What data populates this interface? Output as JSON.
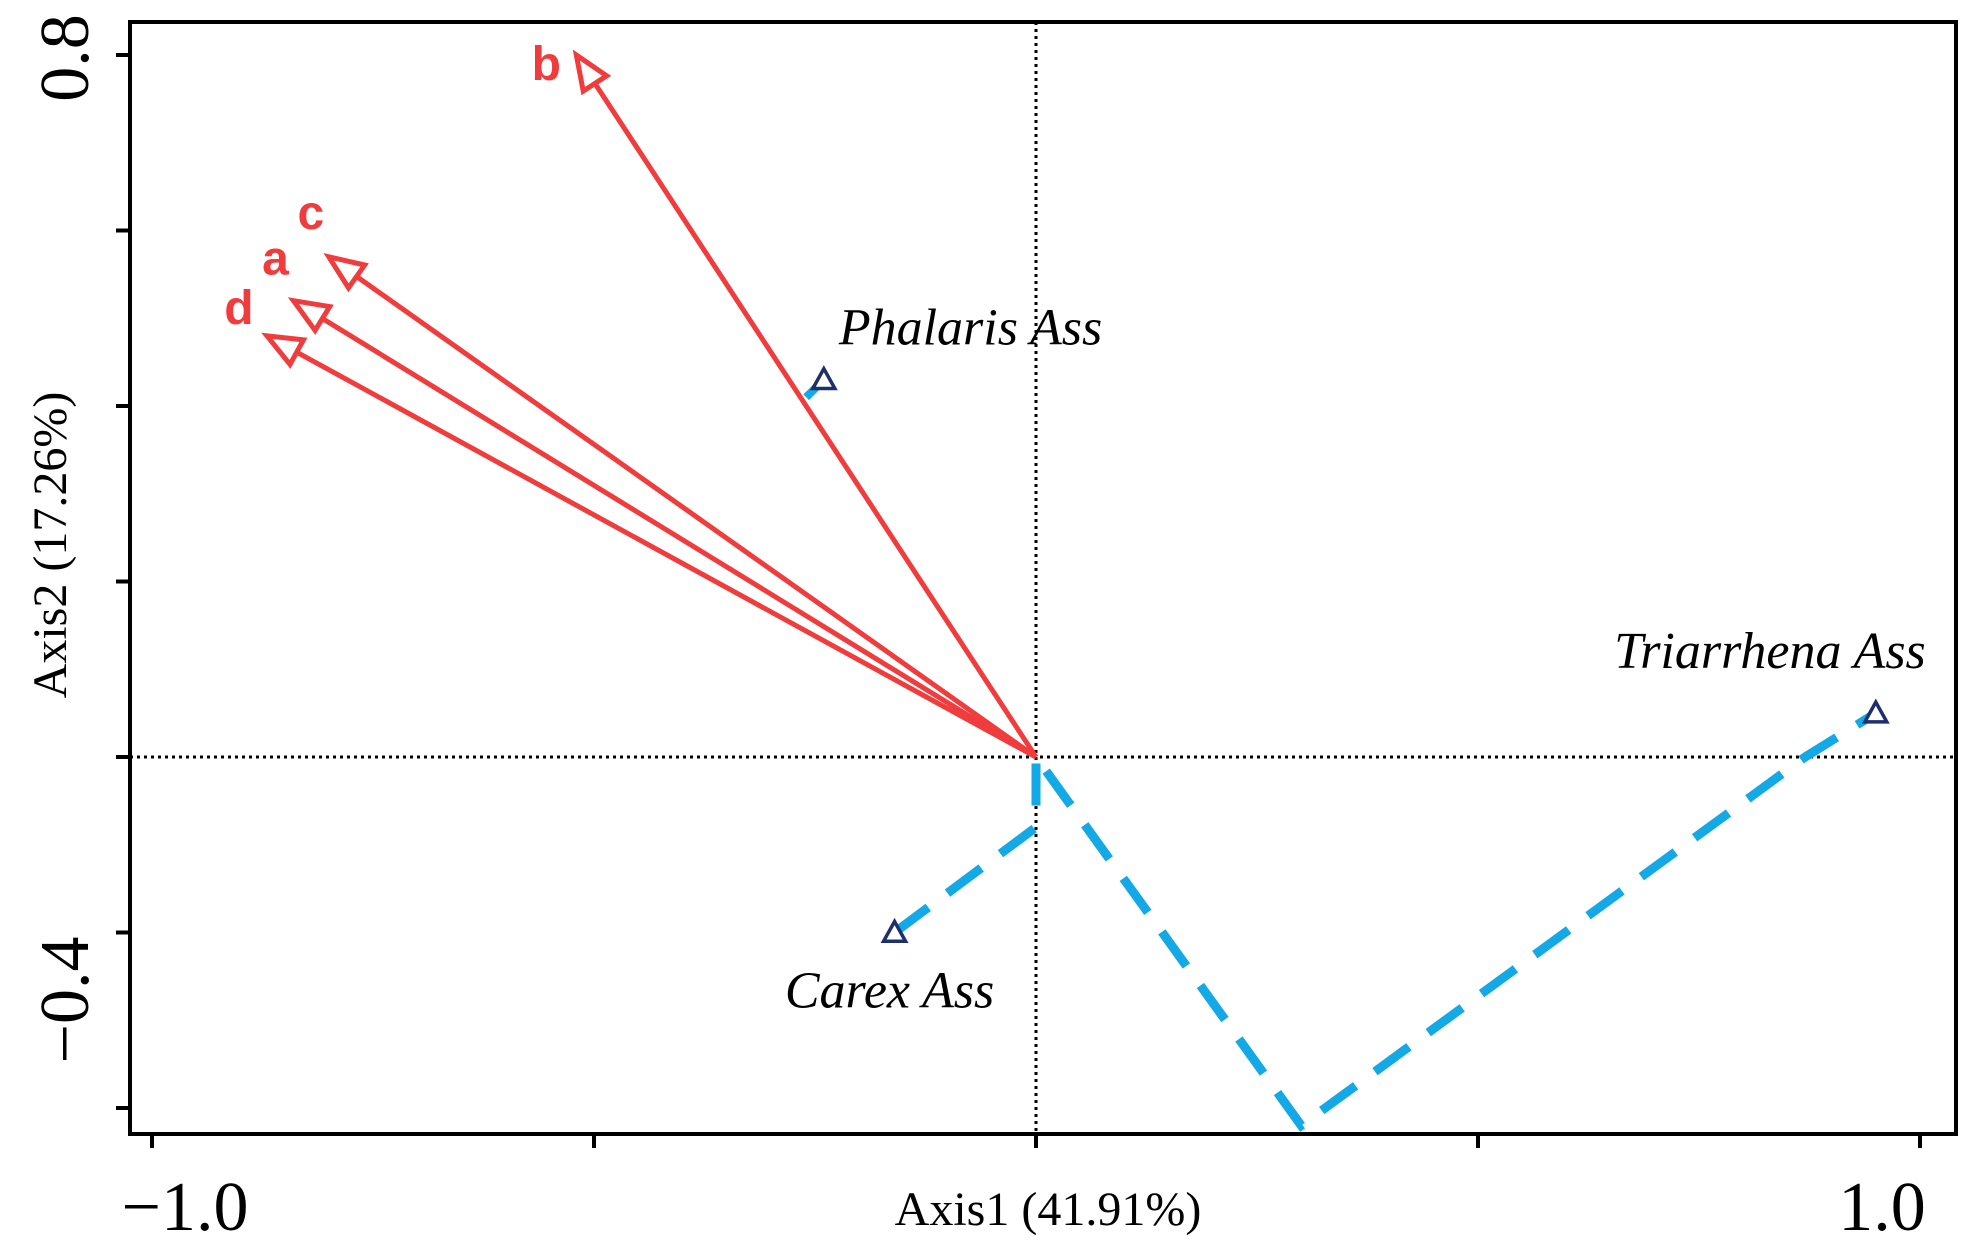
{
  "chart_data": {
    "type": "scatter",
    "xlabel": "Axis1 (41.91%)",
    "ylabel": "Axis2 (17.26%)",
    "xlim": [
      -1.0,
      1.0
    ],
    "ylim": [
      -0.4,
      0.8
    ],
    "xticks": [
      -1.0,
      -0.5,
      0.0,
      0.5,
      1.0
    ],
    "yticks": [
      -0.4,
      -0.2,
      0.0,
      0.2,
      0.4,
      0.6,
      0.8
    ],
    "xtick_labels": [
      {
        "value": -1.0,
        "label": "−1.0"
      },
      {
        "value": 1.0,
        "label": "1.0"
      }
    ],
    "ytick_labels": [
      {
        "value": 0.8,
        "label": "0.8"
      },
      {
        "value": -0.4,
        "label": "−0.4"
      }
    ],
    "reference_lines": {
      "x": 0.0,
      "y": 0.0,
      "style": "dotted"
    },
    "grid": false,
    "arrows": [
      {
        "label": "b",
        "x": -0.52,
        "y": 0.8
      },
      {
        "label": "c",
        "x": -0.8,
        "y": 0.57
      },
      {
        "label": "a",
        "x": -0.84,
        "y": 0.52
      },
      {
        "label": "d",
        "x": -0.87,
        "y": 0.48
      }
    ],
    "arrow_color": "#f03c3c",
    "sites": [
      {
        "label": "Phalaris Ass",
        "x": -0.24,
        "y": 0.43
      },
      {
        "label": "Triarrhena Ass",
        "x": 0.95,
        "y": 0.05
      },
      {
        "label": "Carex Ass",
        "x": -0.16,
        "y": -0.2
      }
    ],
    "site_color": "#1e2f6e",
    "dashed_path": {
      "color": "#12a9e6",
      "points": [
        {
          "x": -0.16,
          "y": -0.2
        },
        {
          "x": 0.0,
          "y": -0.08
        },
        {
          "x": 0.0,
          "y": 0.0
        },
        {
          "x": 0.3,
          "y": -0.42
        },
        {
          "x": 0.87,
          "y": 0.0
        },
        {
          "x": 0.95,
          "y": 0.05
        }
      ],
      "spur": [
        {
          "x": -0.24,
          "y": 0.43
        },
        {
          "x": -0.26,
          "y": 0.41
        }
      ]
    }
  }
}
